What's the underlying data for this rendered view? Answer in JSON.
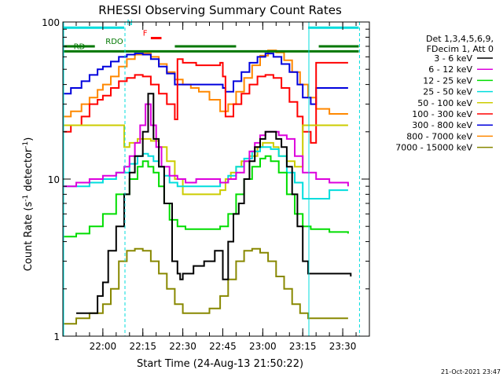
{
  "chart_data": {
    "type": "line",
    "title": "RHESSI Observing Summary Count Rates",
    "xlabel": "Start Time (24-Aug-13 21:50:22)",
    "ylabel_main": "Count Rate (s",
    "ylabel_sup": "-1",
    "ylabel_tail": " detector",
    "ylabel_end": ")",
    "yscale": "log",
    "ylim": [
      1,
      100
    ],
    "xlim_minutes": [
      -15,
      100
    ],
    "x_ticks": [
      {
        "m": 0,
        "label": "22:00"
      },
      {
        "m": 15,
        "label": "22:15"
      },
      {
        "m": 30,
        "label": "22:30"
      },
      {
        "m": 45,
        "label": "22:45"
      },
      {
        "m": 60,
        "label": "23:00"
      },
      {
        "m": 75,
        "label": "23:15"
      },
      {
        "m": 90,
        "label": "23:30"
      }
    ],
    "y_ticks": [
      {
        "v": 1,
        "label": "1"
      },
      {
        "v": 10,
        "label": "10"
      },
      {
        "v": 100,
        "label": "100"
      }
    ],
    "legend_header": [
      "Det 1,3,4,5,6,9,",
      "FDecim 1, Att 0"
    ],
    "series": [
      {
        "name": "3 - 6 keV",
        "color": "#000000",
        "x": [
          -10,
          -2,
          0,
          2,
          5,
          8,
          10,
          12,
          15,
          17,
          19,
          21,
          23,
          26,
          28,
          29,
          30,
          34,
          38,
          42,
          45,
          47,
          49,
          51,
          53,
          55,
          57,
          59,
          61,
          63,
          65,
          67,
          69,
          71,
          73,
          75,
          77,
          80,
          85,
          90,
          93
        ],
        "y": [
          1.4,
          1.8,
          2.2,
          3.5,
          5,
          8,
          11,
          14,
          20,
          35,
          18,
          12,
          7,
          3,
          2.5,
          2.3,
          2.5,
          2.8,
          3,
          3.5,
          2.3,
          4,
          6,
          7,
          10,
          13,
          16,
          18,
          20,
          20,
          18,
          16,
          12,
          8,
          5,
          3,
          2.5,
          2.5,
          2.5,
          2.5,
          2.4
        ]
      },
      {
        "name": "6 - 12 keV",
        "color": "#dd00dd",
        "x": [
          -15,
          -10,
          -5,
          0,
          5,
          8,
          10,
          12,
          14,
          16,
          18,
          20,
          22,
          25,
          28,
          31,
          35,
          40,
          44,
          47,
          50,
          53,
          55,
          57,
          59,
          61,
          63,
          66,
          69,
          72,
          75,
          80,
          85,
          92
        ],
        "y": [
          9,
          9.5,
          10,
          10.5,
          11,
          12,
          14,
          17,
          22,
          30,
          22,
          16,
          12,
          10.5,
          10,
          9.5,
          10,
          10,
          9.5,
          10,
          11,
          13,
          15,
          17,
          19,
          20,
          20,
          19,
          18,
          14,
          11,
          10,
          9.5,
          9
        ]
      },
      {
        "name": "12 - 25 keV",
        "color": "#00dd00",
        "x": [
          -15,
          -10,
          -5,
          0,
          5,
          10,
          13,
          15,
          17,
          19,
          21,
          23,
          25,
          28,
          31,
          35,
          40,
          44,
          47,
          50,
          53,
          56,
          59,
          61,
          63,
          66,
          69,
          72,
          75,
          78,
          85,
          92
        ],
        "y": [
          4.3,
          4.5,
          5,
          6,
          8,
          10,
          12,
          13,
          12,
          11,
          9,
          7,
          5.5,
          5,
          4.8,
          4.8,
          4.8,
          5,
          6,
          8,
          10,
          12,
          13.5,
          14,
          13,
          11,
          8,
          6,
          5,
          4.8,
          4.6,
          4.5
        ]
      },
      {
        "name": "25 - 50 keV",
        "color": "#00dddd",
        "x": [
          -15,
          -10,
          -5,
          0,
          5,
          10,
          13,
          15,
          17,
          19,
          21,
          23,
          25,
          28,
          31,
          35,
          40,
          44,
          47,
          50,
          53,
          56,
          59,
          61,
          63,
          66,
          69,
          72,
          75,
          78,
          85,
          92
        ],
        "y": [
          9,
          9,
          9.5,
          10,
          11,
          12.5,
          14,
          14.5,
          14,
          13,
          12,
          10.5,
          9.5,
          9,
          9,
          9,
          9,
          9.5,
          10.5,
          12,
          13.5,
          15,
          16,
          16,
          15.5,
          14,
          11,
          9.5,
          7.5,
          7.5,
          8.5,
          8.5
        ]
      },
      {
        "name": "50 - 100 keV",
        "color": "#cccc00",
        "x": [
          -15,
          -10,
          -5,
          0,
          5,
          8,
          10,
          13,
          16,
          18,
          21,
          24,
          27,
          30,
          35,
          40,
          44,
          46,
          48,
          50,
          52,
          55,
          58,
          60,
          62,
          64,
          66,
          69,
          72,
          75,
          80,
          85,
          92
        ],
        "y": [
          22,
          22,
          22,
          22,
          22,
          16,
          17,
          18,
          18,
          17.5,
          16,
          13,
          10,
          8,
          8,
          8,
          8.5,
          10,
          11,
          12,
          13,
          14,
          16,
          17,
          17,
          16,
          14,
          13,
          12,
          22,
          22,
          22,
          22
        ]
      },
      {
        "name": "100 - 300 keV",
        "color": "#ff0000",
        "x": [
          -15,
          -12,
          -8,
          -5,
          -2,
          0,
          3,
          6,
          9,
          12,
          15,
          18,
          21,
          24,
          27,
          28,
          30,
          35,
          40,
          44,
          45,
          46,
          49,
          52,
          55,
          58,
          61,
          64,
          67,
          70,
          73,
          75,
          78,
          80,
          85,
          92
        ],
        "y": [
          20,
          22,
          25,
          30,
          32,
          34,
          38,
          42,
          44,
          46,
          45,
          40,
          35,
          30,
          24,
          58,
          55,
          53,
          53,
          55,
          45,
          25,
          30,
          35,
          40,
          45,
          46,
          44,
          38,
          31,
          25,
          20,
          17,
          55,
          55,
          55
        ]
      },
      {
        "name": "300 - 800 keV",
        "color": "#0000dd",
        "x": [
          -15,
          -12,
          -8,
          -5,
          -2,
          0,
          3,
          6,
          9,
          12,
          15,
          18,
          21,
          24,
          27,
          28,
          30,
          35,
          40,
          44,
          45,
          46,
          49,
          52,
          55,
          58,
          61,
          64,
          67,
          70,
          73,
          75,
          78,
          80,
          85,
          92
        ],
        "y": [
          35,
          38,
          42,
          46,
          50,
          52,
          56,
          60,
          62,
          63,
          62,
          58,
          52,
          47,
          40,
          40,
          40,
          40,
          40,
          40,
          38,
          36,
          42,
          48,
          55,
          60,
          63,
          60,
          54,
          48,
          40,
          33,
          30,
          38,
          38,
          38
        ]
      },
      {
        "name": "800 - 7000 keV",
        "color": "#ff8800",
        "x": [
          -15,
          -12,
          -8,
          -5,
          -2,
          0,
          3,
          6,
          9,
          12,
          15,
          18,
          21,
          24,
          27,
          30,
          33,
          36,
          40,
          44,
          47,
          50,
          53,
          56,
          59,
          62,
          65,
          68,
          71,
          74,
          77,
          80,
          85,
          92
        ],
        "y": [
          25,
          27,
          30,
          33,
          37,
          40,
          45,
          52,
          58,
          62,
          63,
          60,
          54,
          48,
          43,
          40,
          38,
          36,
          32,
          27,
          30,
          36,
          44,
          53,
          61,
          66,
          64,
          57,
          48,
          40,
          33,
          28,
          26,
          26
        ]
      },
      {
        "name": "7000 - 15000 keV",
        "color": "#888800",
        "x": [
          -15,
          -10,
          -5,
          0,
          3,
          6,
          9,
          12,
          15,
          18,
          21,
          24,
          27,
          30,
          33,
          36,
          40,
          44,
          47,
          50,
          53,
          56,
          59,
          62,
          65,
          68,
          71,
          74,
          77,
          80,
          85,
          92
        ],
        "y": [
          1.2,
          1.3,
          1.4,
          1.6,
          2,
          3,
          3.5,
          3.6,
          3.5,
          3,
          2.5,
          2,
          1.6,
          1.4,
          1.4,
          1.4,
          1.5,
          1.8,
          2.3,
          3,
          3.5,
          3.6,
          3.4,
          3,
          2.4,
          2,
          1.6,
          1.4,
          1.3,
          1.3,
          1.3,
          1.3
        ]
      }
    ],
    "flag_bars": [
      {
        "label": "N",
        "color": "#00dddd",
        "label_color": "#00dddd",
        "level": 92,
        "segments": [
          [
            -15,
            8
          ],
          [
            77,
            96
          ]
        ],
        "label_at": 9
      },
      {
        "label": "F",
        "color": "#ff0000",
        "label_color": "#ff0000",
        "level": 79,
        "segments": [
          [
            18,
            22
          ]
        ],
        "label_at": 15
      },
      {
        "label": "RDO",
        "color": "#007700",
        "label_color": "#007700",
        "level": 70,
        "segments": [
          [
            -15,
            -3
          ],
          [
            27,
            50
          ],
          [
            81,
            96
          ]
        ],
        "label_at": 1
      },
      {
        "label": "RD",
        "color": "#007700",
        "label_color": "#007700",
        "level": 65,
        "segments": [
          [
            -15,
            96
          ]
        ],
        "label_at": -11
      }
    ],
    "vlines": [
      {
        "x": -15,
        "color": "#00dddd",
        "style": "solid"
      },
      {
        "x": 8,
        "color": "#00dddd",
        "style": "dashed"
      },
      {
        "x": 77,
        "color": "#00dddd",
        "style": "solid"
      },
      {
        "x": 96,
        "color": "#00dddd",
        "style": "dashed"
      }
    ],
    "timestamp": "21-Oct-2021 23:47",
    "grid": false,
    "legend_position": "right"
  }
}
